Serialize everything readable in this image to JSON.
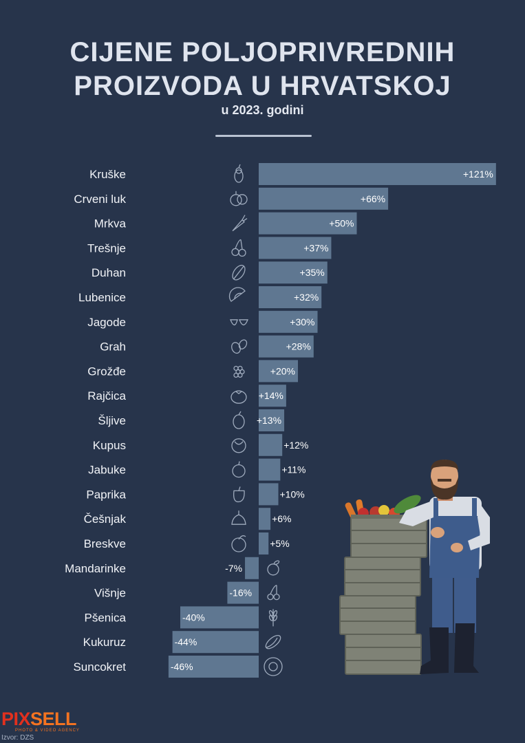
{
  "header": {
    "title_line1": "CIJENE POLJOPRIVREDNIH",
    "title_line2": "PROIZVODA U HRVATSKOJ",
    "subtitle": "u 2023. godini"
  },
  "chart_data": {
    "type": "bar",
    "orientation": "horizontal",
    "title": "CIJENE POLJOPRIVREDNIH PROIZVODA U HRVATSKOJ",
    "subtitle": "u 2023. godini",
    "unit": "%",
    "categories": [
      "Kruške",
      "Crveni luk",
      "Mrkva",
      "Trešnje",
      "Duhan",
      "Lubenice",
      "Jagode",
      "Grah",
      "Grožđe",
      "Rajčica",
      "Šljive",
      "Kupus",
      "Jabuke",
      "Paprika",
      "Češnjak",
      "Breskve",
      "Mandarinke",
      "Višnje",
      "Pšenica",
      "Kukuruz",
      "Suncokret"
    ],
    "values": [
      121,
      66,
      50,
      37,
      35,
      32,
      30,
      28,
      20,
      14,
      13,
      12,
      11,
      10,
      6,
      5,
      -7,
      -16,
      -40,
      -44,
      -46
    ],
    "labels": [
      "+121%",
      "+66%",
      "+50%",
      "+37%",
      "+35%",
      "+32%",
      "+30%",
      "+28%",
      "+20%",
      "+14%",
      "+13%",
      "+12%",
      "+11%",
      "+10%",
      "+6%",
      "+5%",
      "-7%",
      "-16%",
      "-40%",
      "-44%",
      "-46%"
    ],
    "icons": [
      "pear-icon",
      "onion-icon",
      "carrot-icon",
      "cherry-icon",
      "tobacco-leaf-icon",
      "watermelon-icon",
      "strawberry-icon",
      "bean-icon",
      "grape-icon",
      "tomato-icon",
      "plum-icon",
      "cabbage-icon",
      "apple-icon",
      "pepper-icon",
      "garlic-icon",
      "peach-icon",
      "mandarin-icon",
      "sour-cherry-icon",
      "wheat-icon",
      "corn-icon",
      "sunflower-icon"
    ],
    "xlim": [
      -60,
      125
    ],
    "bar_color": "#5f7791"
  },
  "footer": {
    "logo_part1": "PIX",
    "logo_part2": "SELL",
    "logo_tagline": "PHOTO & VIDEO AGENCY",
    "source": "Izvor: DZS"
  },
  "colors": {
    "background": "#27344b",
    "bar": "#5f7791",
    "text": "#f1f3f7",
    "logo_red": "#e2301e",
    "logo_orange": "#f37321"
  }
}
